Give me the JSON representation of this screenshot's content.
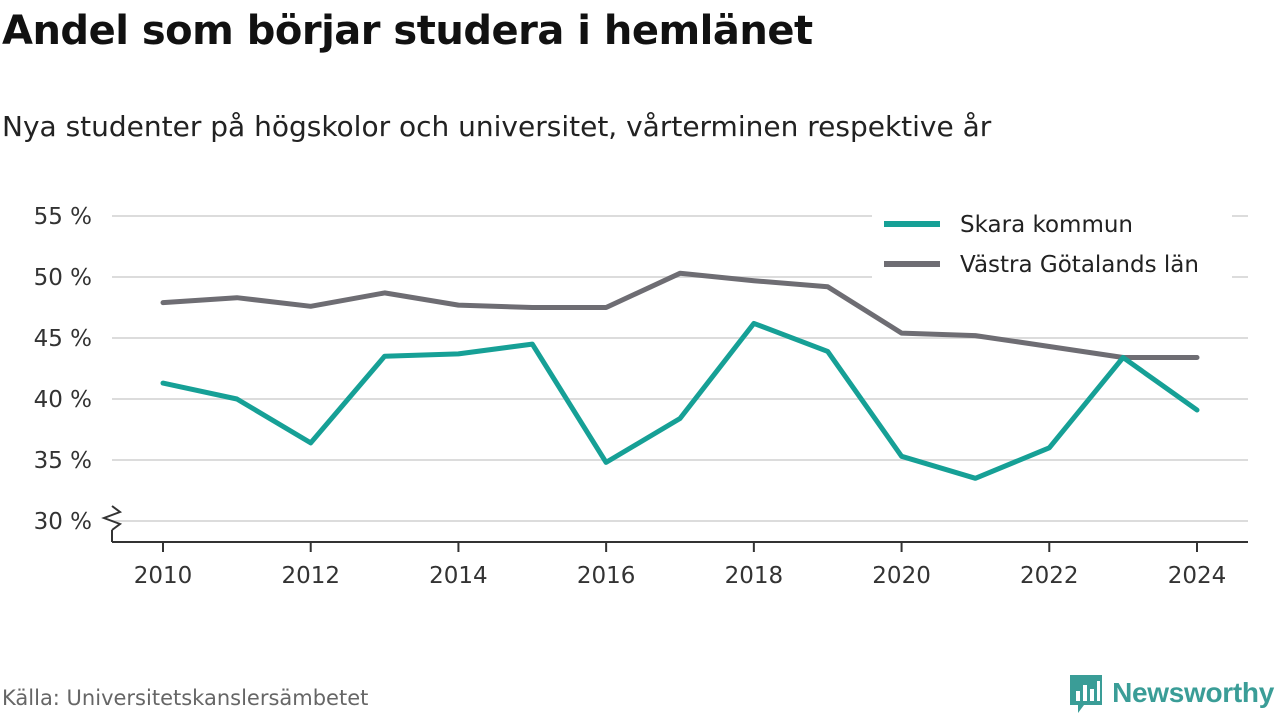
{
  "title": "Andel som börjar studera i hemlänet",
  "subtitle": "Nya studenter på högskolor och universitet, vårterminen respektive år",
  "source": "Källa: Universitetskanslersämbetet",
  "brand": {
    "name": "Newsworthy",
    "icon": "newsworthy-logo-icon",
    "color": "#3a9d97"
  },
  "chart_data": {
    "type": "line",
    "title": "Andel som börjar studera i hemlänet",
    "subtitle": "Nya studenter på högskolor och universitet, vårterminen respektive år",
    "x": [
      2010,
      2011,
      2012,
      2013,
      2014,
      2015,
      2016,
      2017,
      2018,
      2019,
      2020,
      2021,
      2022,
      2023,
      2024
    ],
    "series": [
      {
        "name": "Skara kommun",
        "color": "#16a096",
        "values": [
          41.3,
          40.0,
          36.4,
          43.5,
          43.7,
          44.5,
          34.8,
          38.4,
          46.2,
          43.9,
          35.3,
          33.5,
          36.0,
          43.4,
          39.1
        ]
      },
      {
        "name": "Västra Götalands län",
        "color": "#6e6d73",
        "values": [
          47.9,
          48.3,
          47.6,
          48.7,
          47.7,
          47.5,
          47.5,
          50.3,
          49.7,
          49.2,
          45.4,
          45.2,
          44.3,
          43.4,
          43.4
        ]
      }
    ],
    "ylim": [
      30,
      55
    ],
    "y_ticks": [
      30,
      35,
      40,
      45,
      50,
      55
    ],
    "y_tick_labels": [
      "30 %",
      "35 %",
      "40 %",
      "45 %",
      "50 %",
      "55 %"
    ],
    "x_ticks": [
      2010,
      2012,
      2014,
      2016,
      2018,
      2020,
      2022,
      2024
    ],
    "x_tick_labels": [
      "2010",
      "2012",
      "2014",
      "2016",
      "2018",
      "2020",
      "2022",
      "2024"
    ],
    "axis_break": true,
    "grid": true,
    "legend_position": "top-right"
  }
}
